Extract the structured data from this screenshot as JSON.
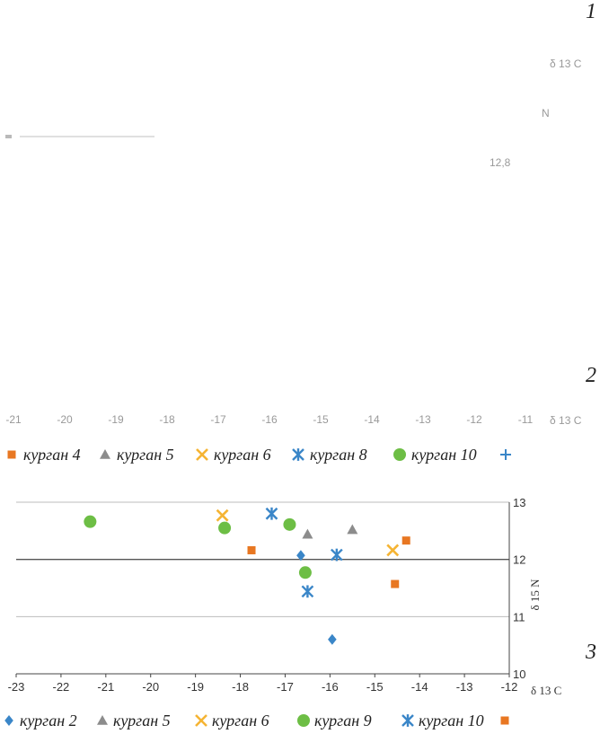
{
  "panels": [
    {
      "label": "1"
    },
    {
      "label": "2"
    },
    {
      "label": "3"
    }
  ],
  "fragments": {
    "p1_axis": "δ 13 C",
    "p1_n": "N",
    "p1_tick": "12,8",
    "p2_axis": "δ 13 C",
    "p2_ticks": [
      "-21",
      "-20",
      "-19",
      "-18",
      "-17",
      "-16",
      "-15",
      "-14",
      "-13",
      "-12",
      "-11"
    ]
  },
  "legend2": {
    "items": [
      {
        "label": "курган 4",
        "marker": "square",
        "color": "#E87722"
      },
      {
        "label": "курган 5",
        "marker": "triangle",
        "color": "#8C8C8C"
      },
      {
        "label": "курган 6",
        "marker": "x",
        "color": "#F5B433"
      },
      {
        "label": "курган 8",
        "marker": "star",
        "color": "#3A86C8"
      },
      {
        "label": "курган 10",
        "marker": "circle",
        "color": "#6DBE45"
      },
      {
        "label": "",
        "marker": "plus",
        "color": "#3A86C8"
      }
    ]
  },
  "chart_data": {
    "type": "scatter",
    "xlabel": "δ 13 C",
    "ylabel": "δ 15 N",
    "xlim": [
      -23,
      -12
    ],
    "ylim": [
      10,
      13
    ],
    "xticks": [
      -23,
      -22,
      -21,
      -20,
      -19,
      -18,
      -17,
      -16,
      -15,
      -14,
      -13,
      -12
    ],
    "yticks": [
      10,
      11,
      12,
      13
    ],
    "grid": true,
    "series": [
      {
        "name": "курган 2",
        "marker": "diamond",
        "color": "#3A86C8",
        "points": [
          [
            -16.65,
            12.07
          ],
          [
            -15.95,
            10.6
          ]
        ]
      },
      {
        "name": "курган  5",
        "marker": "triangle",
        "color": "#8C8C8C",
        "points": [
          [
            -16.5,
            12.44
          ],
          [
            -15.5,
            12.52
          ]
        ]
      },
      {
        "name": "курган 6",
        "marker": "x",
        "color": "#F5B433",
        "points": [
          [
            -18.4,
            12.77
          ],
          [
            -14.6,
            12.16
          ]
        ]
      },
      {
        "name": "курган 9",
        "marker": "circle",
        "color": "#6DBE45",
        "points": [
          [
            -21.35,
            12.66
          ],
          [
            -18.35,
            12.55
          ],
          [
            -16.9,
            12.61
          ],
          [
            -16.55,
            11.77
          ]
        ]
      },
      {
        "name": "курган 10",
        "marker": "star",
        "color": "#3A86C8",
        "points": [
          [
            -17.3,
            12.8
          ],
          [
            -15.85,
            12.08
          ],
          [
            -16.5,
            11.44
          ]
        ]
      },
      {
        "name": "",
        "marker": "square",
        "color": "#E87722",
        "points": [
          [
            -17.75,
            12.16
          ],
          [
            -14.3,
            12.33
          ],
          [
            -14.55,
            11.57
          ]
        ]
      }
    ]
  }
}
